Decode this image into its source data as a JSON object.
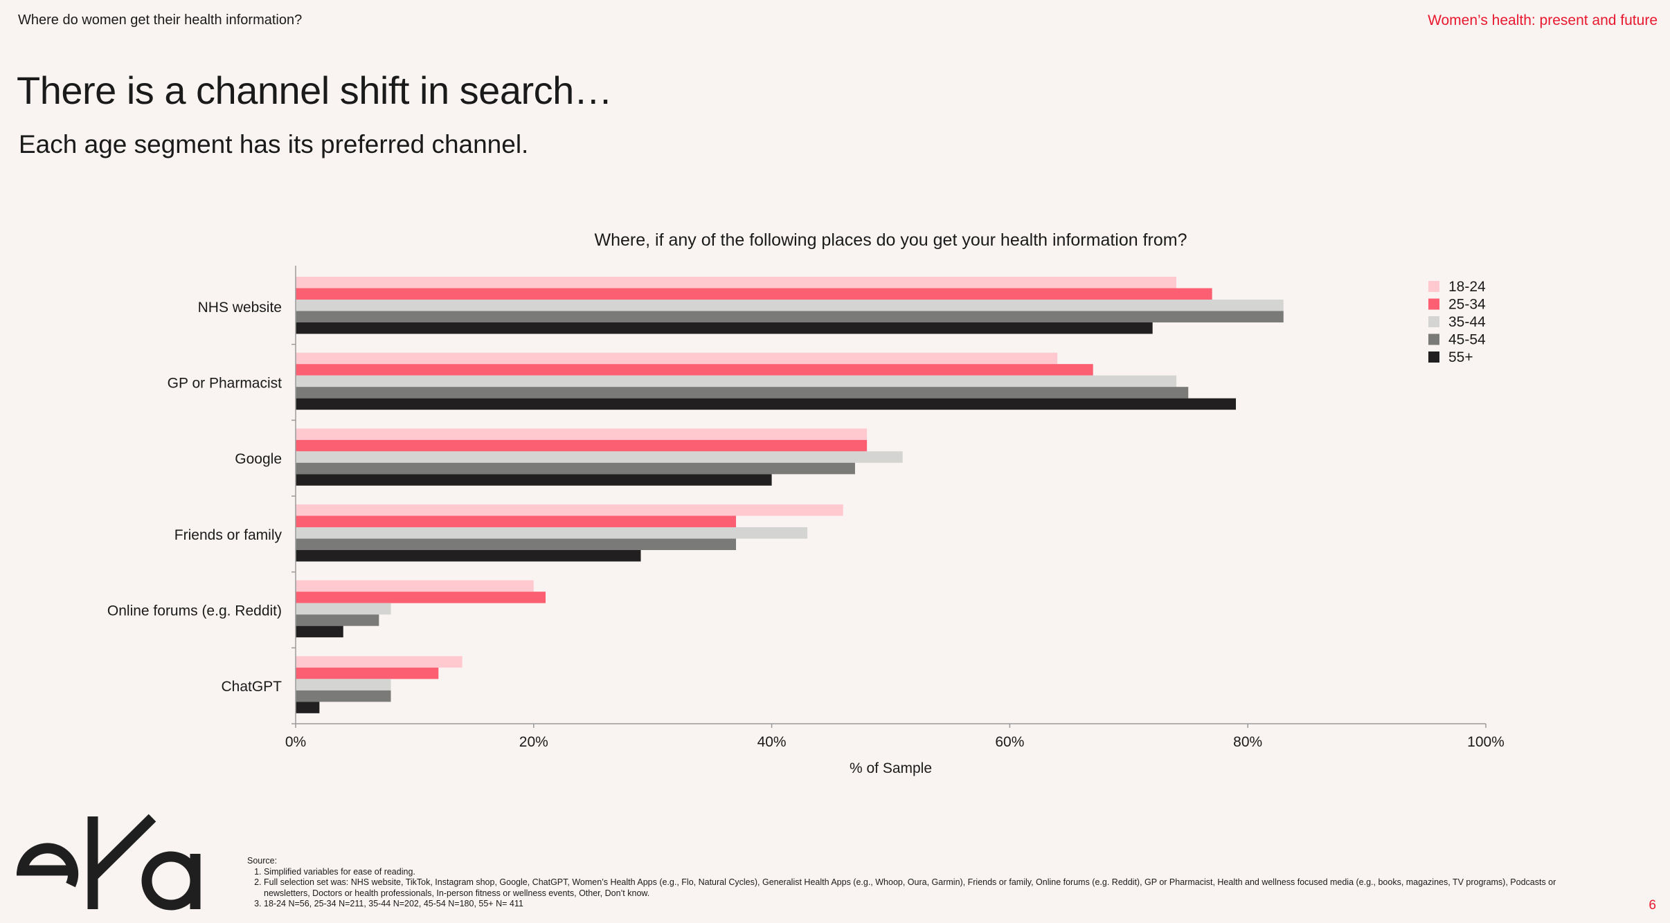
{
  "header": {
    "section_label": "Where do women get their health information?",
    "report_title": "Women’s health: present and future"
  },
  "slide": {
    "title": "There is a channel shift in search…",
    "subtitle": "Each age segment has its preferred channel."
  },
  "chart_data": {
    "type": "bar",
    "orientation": "horizontal",
    "title": "Where, if any of the following places do you get your health information from?",
    "xlabel": "% of Sample",
    "ylabel": "",
    "xlim": [
      0,
      100
    ],
    "x_ticks": [
      0,
      20,
      40,
      60,
      80,
      100
    ],
    "x_tick_labels": [
      "0%",
      "20%",
      "40%",
      "60%",
      "80%",
      "100%"
    ],
    "grid": false,
    "legend_position": "top-right",
    "categories": [
      "NHS website",
      "GP or Pharmacist",
      "Google",
      "Friends or family",
      "Online forums (e.g. Reddit)",
      "ChatGPT"
    ],
    "series": [
      {
        "name": "18-24",
        "color": "#ffc9cf",
        "values": [
          74,
          64,
          48,
          46,
          20,
          14
        ]
      },
      {
        "name": "25-34",
        "color": "#fb5f71",
        "values": [
          77,
          67,
          48,
          37,
          21,
          12
        ]
      },
      {
        "name": "35-44",
        "color": "#d4d4d2",
        "values": [
          83,
          74,
          51,
          43,
          8,
          8
        ]
      },
      {
        "name": "45-54",
        "color": "#7a7a78",
        "values": [
          83,
          75,
          47,
          37,
          7,
          8
        ]
      },
      {
        "name": "55+",
        "color": "#211f1f",
        "values": [
          72,
          79,
          40,
          29,
          4,
          2
        ]
      }
    ]
  },
  "footer": {
    "logo_text": "eka",
    "source_label": "Source:",
    "notes": [
      "Simplified variables for ease of reading.",
      "Full selection set was: NHS website, TikTok, Instagram shop, Google, ChatGPT, Women’s Health Apps (e.g., Flo, Natural Cycles), Generalist Health Apps (e.g., Whoop, Oura, Garmin), Friends or family, Online forums (e.g. Reddit), GP or Pharmacist, Health and wellness focused media (e.g., books, magazines, TV programs), Podcasts or newsletters, Doctors or health professionals, In-person fitness or wellness events, Other, Don’t know.",
      "18-24 N=56, 25-34 N=211, 35-44 N=202, 45-54 N=180, 55+ N= 411"
    ],
    "page_number": "6"
  }
}
